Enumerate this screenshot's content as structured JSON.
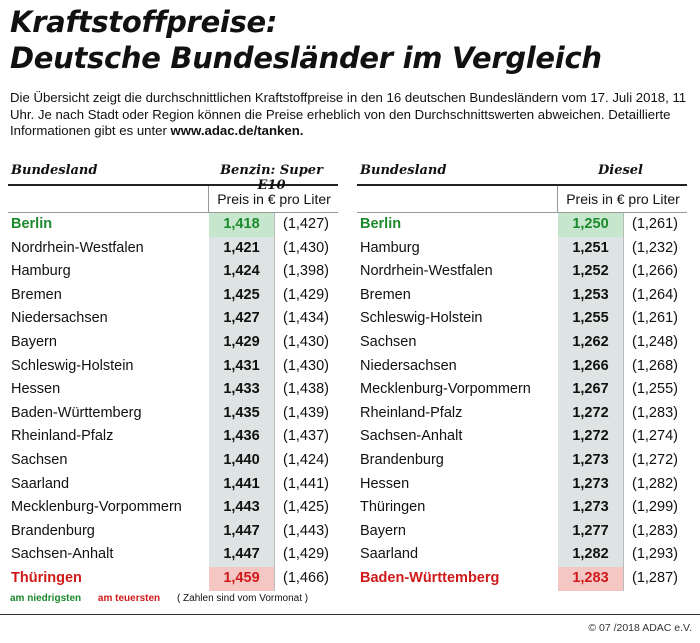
{
  "title_line1": "Kraftstoffpreise:",
  "title_line2": "Deutsche Bundesländer im Vergleich",
  "intro_text": "Die Übersicht zeigt die durchschnittlichen Kraftstoffpreise in den 16 deutschen Bundesländern vom 17. Juli 2018, 11 Uhr. Je nach Stadt oder Region können die Preise erheblich von den Durchschnittswerten abweichen. Detaillierte Informationen gibt es unter ",
  "intro_link": "www.adac.de/tanken.",
  "colors": {
    "green": "#1c8a2c",
    "red": "#d01a1a",
    "shade": "#dde4e3"
  },
  "left": {
    "col_bundesland": "Bundesland",
    "col_fuel": "Benzin: Super E10",
    "unit": "Preis in € pro Liter",
    "rows": [
      {
        "name": "Berlin",
        "price": "1,418",
        "prev": "(1,427)",
        "status": "cheapest"
      },
      {
        "name": "Nordrhein-Westfalen",
        "price": "1,421",
        "prev": "(1,430)",
        "status": ""
      },
      {
        "name": "Hamburg",
        "price": "1,424",
        "prev": "(1,398)",
        "status": ""
      },
      {
        "name": "Bremen",
        "price": "1,425",
        "prev": "(1,429)",
        "status": ""
      },
      {
        "name": "Niedersachsen",
        "price": "1,427",
        "prev": "(1,434)",
        "status": ""
      },
      {
        "name": "Bayern",
        "price": "1,429",
        "prev": "(1,430)",
        "status": ""
      },
      {
        "name": "Schleswig-Holstein",
        "price": "1,431",
        "prev": "(1,430)",
        "status": ""
      },
      {
        "name": "Hessen",
        "price": "1,433",
        "prev": "(1,438)",
        "status": ""
      },
      {
        "name": "Baden-Württemberg",
        "price": "1,435",
        "prev": "(1,439)",
        "status": ""
      },
      {
        "name": "Rheinland-Pfalz",
        "price": "1,436",
        "prev": "(1,437)",
        "status": ""
      },
      {
        "name": "Sachsen",
        "price": "1,440",
        "prev": "(1,424)",
        "status": ""
      },
      {
        "name": "Saarland",
        "price": "1,441",
        "prev": "(1,441)",
        "status": ""
      },
      {
        "name": "Mecklenburg-Vorpommern",
        "price": "1,443",
        "prev": "(1,425)",
        "status": ""
      },
      {
        "name": "Brandenburg",
        "price": "1,447",
        "prev": "(1,443)",
        "status": ""
      },
      {
        "name": "Sachsen-Anhalt",
        "price": "1,447",
        "prev": "(1,429)",
        "status": ""
      },
      {
        "name": "Thüringen",
        "price": "1,459",
        "prev": "(1,466)",
        "status": "most_expensive"
      }
    ]
  },
  "right": {
    "col_bundesland": "Bundesland",
    "col_fuel": "Diesel",
    "unit": "Preis in € pro Liter",
    "rows": [
      {
        "name": "Berlin",
        "price": "1,250",
        "prev": "(1,261)",
        "status": "cheapest"
      },
      {
        "name": "Hamburg",
        "price": "1,251",
        "prev": "(1,232)",
        "status": ""
      },
      {
        "name": "Nordrhein-Westfalen",
        "price": "1,252",
        "prev": "(1,266)",
        "status": ""
      },
      {
        "name": "Bremen",
        "price": "1,253",
        "prev": "(1,264)",
        "status": ""
      },
      {
        "name": "Schleswig-Holstein",
        "price": "1,255",
        "prev": "(1,261)",
        "status": ""
      },
      {
        "name": "Sachsen",
        "price": "1,262",
        "prev": "(1,248)",
        "status": ""
      },
      {
        "name": "Niedersachsen",
        "price": "1,266",
        "prev": "(1,268)",
        "status": ""
      },
      {
        "name": "Mecklenburg-Vorpommern",
        "price": "1,267",
        "prev": "(1,255)",
        "status": ""
      },
      {
        "name": "Rheinland-Pfalz",
        "price": "1,272",
        "prev": "(1,283)",
        "status": ""
      },
      {
        "name": "Sachsen-Anhalt",
        "price": "1,272",
        "prev": "(1,274)",
        "status": ""
      },
      {
        "name": "Brandenburg",
        "price": "1,273",
        "prev": "(1,272)",
        "status": ""
      },
      {
        "name": "Hessen",
        "price": "1,273",
        "prev": "(1,282)",
        "status": ""
      },
      {
        "name": "Thüringen",
        "price": "1,273",
        "prev": "(1,299)",
        "status": ""
      },
      {
        "name": "Bayern",
        "price": "1,277",
        "prev": "(1,283)",
        "status": ""
      },
      {
        "name": "Saarland",
        "price": "1,282",
        "prev": "(1,293)",
        "status": ""
      },
      {
        "name": "Baden-Württemberg",
        "price": "1,283",
        "prev": "(1,287)",
        "status": "most_expensive"
      }
    ]
  },
  "legend": {
    "cheapest": "am niedrigsten",
    "most_expensive": "am teuersten",
    "note": "( Zahlen sind vom Vormonat )"
  },
  "copyright": "© 07 /2018 ADAC e.V."
}
